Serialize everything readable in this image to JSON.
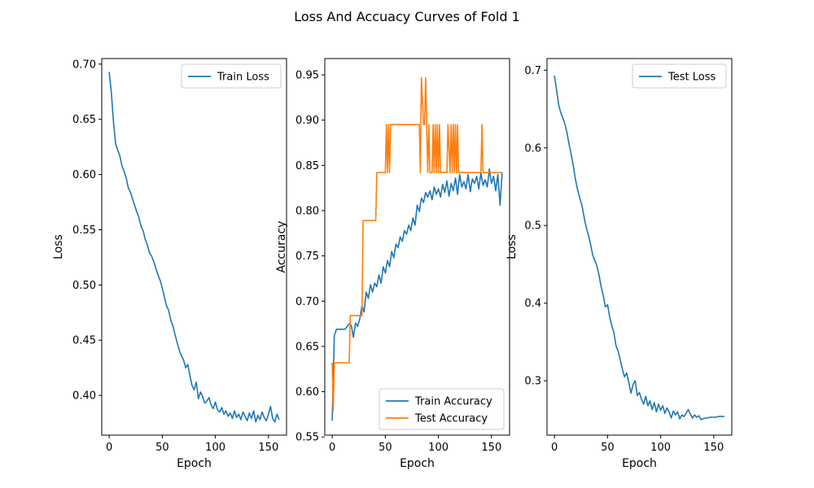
{
  "figure": {
    "title": "Loss And Accuacy Curves of Fold 1"
  },
  "colors": {
    "blue": "#1f77b4",
    "orange": "#ff7f0e"
  },
  "chart_data": [
    {
      "type": "line",
      "xlabel": "Epoch",
      "ylabel": "Loss",
      "xlim": [
        -7,
        167
      ],
      "ylim": [
        0.364,
        0.705
      ],
      "xticks": [
        "0",
        "50",
        "100",
        "150"
      ],
      "yticks": [
        "0.40",
        "0.45",
        "0.50",
        "0.55",
        "0.60",
        "0.65",
        "0.70"
      ],
      "legend_position": "top-right",
      "series": [
        {
          "name": "Train Loss",
          "color": "#1f77b4",
          "x": [
            0,
            2,
            4,
            6,
            8,
            10,
            12,
            14,
            16,
            18,
            20,
            22,
            24,
            26,
            28,
            30,
            32,
            34,
            36,
            38,
            40,
            42,
            44,
            46,
            48,
            50,
            52,
            54,
            56,
            58,
            60,
            62,
            64,
            66,
            68,
            70,
            72,
            74,
            76,
            78,
            80,
            82,
            84,
            86,
            88,
            90,
            92,
            94,
            96,
            98,
            100,
            102,
            104,
            106,
            108,
            110,
            112,
            114,
            116,
            118,
            120,
            122,
            124,
            126,
            128,
            130,
            132,
            134,
            136,
            138,
            140,
            142,
            144,
            146,
            148,
            150,
            152,
            154,
            156,
            158,
            160
          ],
          "y": [
            0.693,
            0.675,
            0.648,
            0.628,
            0.622,
            0.617,
            0.608,
            0.603,
            0.597,
            0.588,
            0.584,
            0.578,
            0.572,
            0.566,
            0.561,
            0.553,
            0.549,
            0.541,
            0.536,
            0.529,
            0.526,
            0.521,
            0.515,
            0.509,
            0.504,
            0.497,
            0.489,
            0.481,
            0.477,
            0.468,
            0.463,
            0.455,
            0.448,
            0.441,
            0.436,
            0.432,
            0.425,
            0.428,
            0.418,
            0.409,
            0.405,
            0.412,
            0.397,
            0.403,
            0.399,
            0.393,
            0.395,
            0.398,
            0.391,
            0.388,
            0.394,
            0.387,
            0.385,
            0.389,
            0.383,
            0.386,
            0.381,
            0.384,
            0.379,
            0.386,
            0.38,
            0.383,
            0.378,
            0.385,
            0.381,
            0.377,
            0.384,
            0.379,
            0.386,
            0.376,
            0.382,
            0.378,
            0.385,
            0.38,
            0.377,
            0.383,
            0.39,
            0.379,
            0.376,
            0.383,
            0.378
          ]
        }
      ]
    },
    {
      "type": "line",
      "xlabel": "Epoch",
      "ylabel": "Accuracy",
      "xlim": [
        -7,
        167
      ],
      "ylim": [
        0.552,
        0.968
      ],
      "xticks": [
        "0",
        "50",
        "100",
        "150"
      ],
      "yticks": [
        "0.55",
        "0.60",
        "0.65",
        "0.70",
        "0.75",
        "0.80",
        "0.85",
        "0.90",
        "0.95"
      ],
      "legend_position": "bottom-right",
      "series": [
        {
          "name": "Train Accuracy",
          "color": "#1f77b4",
          "x": [
            0,
            2,
            4,
            6,
            8,
            10,
            12,
            14,
            16,
            18,
            20,
            22,
            24,
            26,
            28,
            30,
            32,
            34,
            36,
            38,
            40,
            42,
            44,
            46,
            48,
            50,
            52,
            54,
            56,
            58,
            60,
            62,
            64,
            66,
            68,
            70,
            72,
            74,
            76,
            78,
            80,
            82,
            84,
            86,
            88,
            90,
            92,
            94,
            96,
            98,
            100,
            102,
            104,
            106,
            108,
            110,
            112,
            114,
            116,
            118,
            120,
            122,
            124,
            126,
            128,
            130,
            132,
            134,
            136,
            138,
            140,
            142,
            144,
            146,
            148,
            150,
            152,
            154,
            156,
            158,
            160
          ],
          "y": [
            0.568,
            0.662,
            0.669,
            0.669,
            0.669,
            0.669,
            0.669,
            0.672,
            0.675,
            0.673,
            0.66,
            0.676,
            0.672,
            0.681,
            0.695,
            0.688,
            0.71,
            0.703,
            0.718,
            0.71,
            0.72,
            0.716,
            0.729,
            0.72,
            0.738,
            0.731,
            0.745,
            0.738,
            0.755,
            0.748,
            0.763,
            0.759,
            0.771,
            0.766,
            0.778,
            0.774,
            0.784,
            0.778,
            0.792,
            0.784,
            0.806,
            0.799,
            0.814,
            0.809,
            0.82,
            0.815,
            0.822,
            0.812,
            0.826,
            0.818,
            0.824,
            0.815,
            0.829,
            0.82,
            0.833,
            0.816,
            0.83,
            0.822,
            0.836,
            0.818,
            0.84,
            0.826,
            0.832,
            0.824,
            0.84,
            0.821,
            0.835,
            0.83,
            0.838,
            0.824,
            0.842,
            0.828,
            0.834,
            0.826,
            0.846,
            0.83,
            0.838,
            0.822,
            0.84,
            0.806,
            0.842
          ]
        },
        {
          "name": "Test Accuracy",
          "color": "#ff7f0e",
          "x": [
            0,
            1,
            2,
            3,
            5,
            16,
            17,
            28,
            29,
            41,
            42,
            50,
            51,
            52,
            53,
            54,
            55,
            56,
            57,
            82,
            83,
            84,
            86,
            87,
            88,
            89,
            90,
            91,
            92,
            93,
            94,
            95,
            96,
            97,
            98,
            99,
            100,
            101,
            102,
            103,
            104,
            108,
            109,
            111,
            112,
            113,
            114,
            115,
            116,
            117,
            118,
            119,
            120,
            121,
            122,
            140,
            141,
            142,
            143,
            160
          ],
          "y": [
            0.632,
            0.579,
            0.632,
            0.632,
            0.632,
            0.632,
            0.684,
            0.684,
            0.789,
            0.789,
            0.842,
            0.842,
            0.895,
            0.842,
            0.895,
            0.842,
            0.895,
            0.895,
            0.895,
            0.895,
            0.842,
            0.947,
            0.895,
            0.895,
            0.947,
            0.895,
            0.842,
            0.895,
            0.842,
            0.842,
            0.842,
            0.895,
            0.842,
            0.895,
            0.842,
            0.895,
            0.842,
            0.895,
            0.842,
            0.842,
            0.842,
            0.842,
            0.895,
            0.842,
            0.895,
            0.842,
            0.895,
            0.842,
            0.895,
            0.842,
            0.895,
            0.842,
            0.842,
            0.842,
            0.842,
            0.842,
            0.895,
            0.842,
            0.842,
            0.842
          ]
        }
      ]
    },
    {
      "type": "line",
      "xlabel": "Epoch",
      "ylabel": "Loss",
      "xlim": [
        -7,
        167
      ],
      "ylim": [
        0.23,
        0.715
      ],
      "xticks": [
        "0",
        "50",
        "100",
        "150"
      ],
      "yticks": [
        "0.3",
        "0.4",
        "0.5",
        "0.6",
        "0.7"
      ],
      "legend_position": "top-right",
      "series": [
        {
          "name": "Test Loss",
          "color": "#1f77b4",
          "x": [
            0,
            2,
            4,
            6,
            8,
            10,
            12,
            14,
            16,
            18,
            20,
            22,
            24,
            26,
            28,
            30,
            32,
            34,
            36,
            38,
            40,
            42,
            44,
            46,
            48,
            50,
            52,
            54,
            56,
            58,
            60,
            62,
            64,
            66,
            68,
            70,
            72,
            74,
            76,
            78,
            80,
            82,
            84,
            86,
            88,
            90,
            92,
            94,
            96,
            98,
            100,
            102,
            104,
            106,
            108,
            110,
            112,
            114,
            116,
            118,
            120,
            122,
            124,
            126,
            128,
            130,
            132,
            134,
            136,
            138,
            140,
            142,
            144,
            146,
            148,
            150,
            152,
            154,
            156,
            158,
            160
          ],
          "y": [
            0.693,
            0.675,
            0.655,
            0.645,
            0.638,
            0.63,
            0.618,
            0.603,
            0.59,
            0.575,
            0.558,
            0.545,
            0.535,
            0.525,
            0.51,
            0.497,
            0.488,
            0.476,
            0.462,
            0.455,
            0.448,
            0.436,
            0.421,
            0.41,
            0.395,
            0.398,
            0.382,
            0.371,
            0.362,
            0.345,
            0.338,
            0.327,
            0.315,
            0.305,
            0.31,
            0.298,
            0.284,
            0.295,
            0.3,
            0.281,
            0.285,
            0.276,
            0.27,
            0.28,
            0.268,
            0.274,
            0.263,
            0.272,
            0.26,
            0.27,
            0.262,
            0.268,
            0.258,
            0.265,
            0.26,
            0.252,
            0.261,
            0.256,
            0.26,
            0.251,
            0.256,
            0.254,
            0.258,
            0.263,
            0.257,
            0.252,
            0.256,
            0.253,
            0.255,
            0.25,
            0.251,
            0.252,
            0.252,
            0.253,
            0.253,
            0.253,
            0.253,
            0.254,
            0.254,
            0.254,
            0.254
          ]
        }
      ]
    }
  ]
}
